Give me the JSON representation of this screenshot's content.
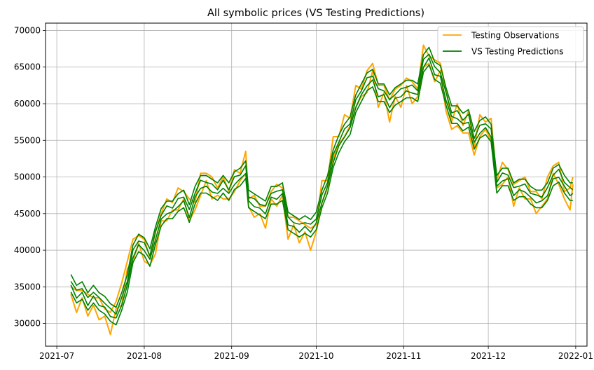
{
  "chart_data": {
    "type": "line",
    "title": "All symbolic prices (VS Testing Predictions)",
    "xlabel": "",
    "ylabel": "",
    "x_range": [
      "2021-07-06",
      "2021-12-31"
    ],
    "ylim": [
      26900,
      71000
    ],
    "x_ticks": [
      "2021-07",
      "2021-08",
      "2021-09",
      "2021-10",
      "2021-11",
      "2021-12",
      "2022-01"
    ],
    "y_ticks": [
      30000,
      35000,
      40000,
      45000,
      50000,
      55000,
      60000,
      65000,
      70000
    ],
    "grid": true,
    "legend_position": "top-right",
    "series": [
      {
        "name": "Testing Observations",
        "color": "#ffa500",
        "points": [
          [
            "2021-07-06",
            34500
          ],
          [
            "2021-07-08",
            33000
          ],
          [
            "2021-07-10",
            34000
          ],
          [
            "2021-07-12",
            32500
          ],
          [
            "2021-07-14",
            33000
          ],
          [
            "2021-07-16",
            32000
          ],
          [
            "2021-07-18",
            31500
          ],
          [
            "2021-07-20",
            30000
          ],
          [
            "2021-07-22",
            32500
          ],
          [
            "2021-07-24",
            34000
          ],
          [
            "2021-07-26",
            38000
          ],
          [
            "2021-07-28",
            40000
          ],
          [
            "2021-07-30",
            41500
          ],
          [
            "2021-08-01",
            40000
          ],
          [
            "2021-08-03",
            38500
          ],
          [
            "2021-08-05",
            41000
          ],
          [
            "2021-08-07",
            44500
          ],
          [
            "2021-08-09",
            45500
          ],
          [
            "2021-08-11",
            46000
          ],
          [
            "2021-08-13",
            47000
          ],
          [
            "2021-08-15",
            47500
          ],
          [
            "2021-08-17",
            45500
          ],
          [
            "2021-08-19",
            46000
          ],
          [
            "2021-08-21",
            49000
          ],
          [
            "2021-08-23",
            50000
          ],
          [
            "2021-08-25",
            48500
          ],
          [
            "2021-08-27",
            48000
          ],
          [
            "2021-08-29",
            48500
          ],
          [
            "2021-08-31",
            47500
          ],
          [
            "2021-09-02",
            49500
          ],
          [
            "2021-09-04",
            50000
          ],
          [
            "2021-09-06",
            52000
          ],
          [
            "2021-09-07",
            46500
          ],
          [
            "2021-09-09",
            46000
          ],
          [
            "2021-09-11",
            45500
          ],
          [
            "2021-09-13",
            44500
          ],
          [
            "2021-09-15",
            47500
          ],
          [
            "2021-09-17",
            47500
          ],
          [
            "2021-09-19",
            48000
          ],
          [
            "2021-09-21",
            43000
          ],
          [
            "2021-09-23",
            44000
          ],
          [
            "2021-09-25",
            42500
          ],
          [
            "2021-09-27",
            43000
          ],
          [
            "2021-09-29",
            41500
          ],
          [
            "2021-10-01",
            43000
          ],
          [
            "2021-10-03",
            48000
          ],
          [
            "2021-10-05",
            49000
          ],
          [
            "2021-10-07",
            54000
          ],
          [
            "2021-10-09",
            55000
          ],
          [
            "2021-10-11",
            57000
          ],
          [
            "2021-10-13",
            57500
          ],
          [
            "2021-10-15",
            61000
          ],
          [
            "2021-10-17",
            61500
          ],
          [
            "2021-10-19",
            63000
          ],
          [
            "2021-10-21",
            65000
          ],
          [
            "2021-10-23",
            61000
          ],
          [
            "2021-10-25",
            62000
          ],
          [
            "2021-10-27",
            59000
          ],
          [
            "2021-10-29",
            61500
          ],
          [
            "2021-10-31",
            61000
          ],
          [
            "2021-11-02",
            63000
          ],
          [
            "2021-11-04",
            61500
          ],
          [
            "2021-11-06",
            61500
          ],
          [
            "2021-11-08",
            66500
          ],
          [
            "2021-11-10",
            66000
          ],
          [
            "2021-11-12",
            64500
          ],
          [
            "2021-11-14",
            65000
          ],
          [
            "2021-11-16",
            60500
          ],
          [
            "2021-11-18",
            57000
          ],
          [
            "2021-11-20",
            58500
          ],
          [
            "2021-11-22",
            56500
          ],
          [
            "2021-11-24",
            57500
          ],
          [
            "2021-11-26",
            53500
          ],
          [
            "2021-11-28",
            57000
          ],
          [
            "2021-11-30",
            57000
          ],
          [
            "2021-12-02",
            56500
          ],
          [
            "2021-12-04",
            49000
          ],
          [
            "2021-12-06",
            50500
          ],
          [
            "2021-12-08",
            50500
          ],
          [
            "2021-12-10",
            47500
          ],
          [
            "2021-12-12",
            49000
          ],
          [
            "2021-12-14",
            48500
          ],
          [
            "2021-12-16",
            47500
          ],
          [
            "2021-12-18",
            46500
          ],
          [
            "2021-12-20",
            46500
          ],
          [
            "2021-12-22",
            48500
          ],
          [
            "2021-12-24",
            51000
          ],
          [
            "2021-12-26",
            50500
          ],
          [
            "2021-12-28",
            47500
          ],
          [
            "2021-12-30",
            47000
          ],
          [
            "2021-12-31",
            49500
          ]
        ]
      },
      {
        "name": "VS Testing Predictions",
        "color": "#008000",
        "points": [
          [
            "2021-07-06",
            35500
          ],
          [
            "2021-07-08",
            34000
          ],
          [
            "2021-07-10",
            34500
          ],
          [
            "2021-07-12",
            33000
          ],
          [
            "2021-07-14",
            34000
          ],
          [
            "2021-07-16",
            33000
          ],
          [
            "2021-07-18",
            32500
          ],
          [
            "2021-07-20",
            31500
          ],
          [
            "2021-07-22",
            31000
          ],
          [
            "2021-07-24",
            33000
          ],
          [
            "2021-07-26",
            35500
          ],
          [
            "2021-07-28",
            39500
          ],
          [
            "2021-07-30",
            41000
          ],
          [
            "2021-08-01",
            40500
          ],
          [
            "2021-08-03",
            39000
          ],
          [
            "2021-08-05",
            42000
          ],
          [
            "2021-08-07",
            44500
          ],
          [
            "2021-08-09",
            45500
          ],
          [
            "2021-08-11",
            45500
          ],
          [
            "2021-08-13",
            46500
          ],
          [
            "2021-08-15",
            47000
          ],
          [
            "2021-08-17",
            45000
          ],
          [
            "2021-08-19",
            47500
          ],
          [
            "2021-08-21",
            49000
          ],
          [
            "2021-08-23",
            49000
          ],
          [
            "2021-08-25",
            48500
          ],
          [
            "2021-08-27",
            48000
          ],
          [
            "2021-08-29",
            49000
          ],
          [
            "2021-08-31",
            48000
          ],
          [
            "2021-09-02",
            49500
          ],
          [
            "2021-09-04",
            50000
          ],
          [
            "2021-09-06",
            51000
          ],
          [
            "2021-09-07",
            47000
          ],
          [
            "2021-09-09",
            46500
          ],
          [
            "2021-09-11",
            46000
          ],
          [
            "2021-09-13",
            45500
          ],
          [
            "2021-09-15",
            47500
          ],
          [
            "2021-09-17",
            47500
          ],
          [
            "2021-09-19",
            48000
          ],
          [
            "2021-09-21",
            44000
          ],
          [
            "2021-09-23",
            43500
          ],
          [
            "2021-09-25",
            43000
          ],
          [
            "2021-09-27",
            43500
          ],
          [
            "2021-09-29",
            43000
          ],
          [
            "2021-10-01",
            44000
          ],
          [
            "2021-10-03",
            47000
          ],
          [
            "2021-10-05",
            49000
          ],
          [
            "2021-10-07",
            52500
          ],
          [
            "2021-10-09",
            54500
          ],
          [
            "2021-10-11",
            56000
          ],
          [
            "2021-10-13",
            57000
          ],
          [
            "2021-10-15",
            60000
          ],
          [
            "2021-10-17",
            61500
          ],
          [
            "2021-10-19",
            63000
          ],
          [
            "2021-10-21",
            63500
          ],
          [
            "2021-10-23",
            61500
          ],
          [
            "2021-10-25",
            61500
          ],
          [
            "2021-10-27",
            60000
          ],
          [
            "2021-10-29",
            61000
          ],
          [
            "2021-10-31",
            61500
          ],
          [
            "2021-11-02",
            62000
          ],
          [
            "2021-11-04",
            62000
          ],
          [
            "2021-11-06",
            61500
          ],
          [
            "2021-11-08",
            65500
          ],
          [
            "2021-11-10",
            66500
          ],
          [
            "2021-11-12",
            64500
          ],
          [
            "2021-11-14",
            64000
          ],
          [
            "2021-11-16",
            61000
          ],
          [
            "2021-11-18",
            58500
          ],
          [
            "2021-11-20",
            58500
          ],
          [
            "2021-11-22",
            57500
          ],
          [
            "2021-11-24",
            58000
          ],
          [
            "2021-11-26",
            55000
          ],
          [
            "2021-11-28",
            56500
          ],
          [
            "2021-11-30",
            57000
          ],
          [
            "2021-12-02",
            56000
          ],
          [
            "2021-12-04",
            49000
          ],
          [
            "2021-12-06",
            50000
          ],
          [
            "2021-12-08",
            50000
          ],
          [
            "2021-12-10",
            48000
          ],
          [
            "2021-12-12",
            48500
          ],
          [
            "2021-12-14",
            48500
          ],
          [
            "2021-12-16",
            47500
          ],
          [
            "2021-12-18",
            47000
          ],
          [
            "2021-12-20",
            47000
          ],
          [
            "2021-12-22",
            48000
          ],
          [
            "2021-12-24",
            50000
          ],
          [
            "2021-12-26",
            50500
          ],
          [
            "2021-12-28",
            49000
          ],
          [
            "2021-12-30",
            48000
          ],
          [
            "2021-12-31",
            48000
          ]
        ]
      }
    ]
  }
}
